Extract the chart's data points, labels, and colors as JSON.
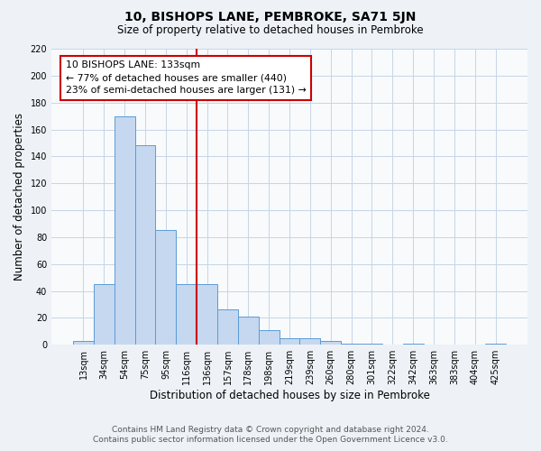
{
  "title": "10, BISHOPS LANE, PEMBROKE, SA71 5JN",
  "subtitle": "Size of property relative to detached houses in Pembroke",
  "xlabel": "Distribution of detached houses by size in Pembroke",
  "ylabel": "Number of detached properties",
  "bar_labels": [
    "13sqm",
    "34sqm",
    "54sqm",
    "75sqm",
    "95sqm",
    "116sqm",
    "136sqm",
    "157sqm",
    "178sqm",
    "198sqm",
    "219sqm",
    "239sqm",
    "260sqm",
    "280sqm",
    "301sqm",
    "322sqm",
    "342sqm",
    "363sqm",
    "383sqm",
    "404sqm",
    "425sqm"
  ],
  "bar_values": [
    3,
    45,
    170,
    148,
    85,
    45,
    45,
    26,
    21,
    11,
    5,
    5,
    3,
    1,
    1,
    0,
    1,
    0,
    0,
    0,
    1
  ],
  "bar_color": "#c5d8f0",
  "bar_edge_color": "#5b9bd5",
  "vline_x": 6,
  "vline_color": "#cc0000",
  "ylim": [
    0,
    220
  ],
  "yticks": [
    0,
    20,
    40,
    60,
    80,
    100,
    120,
    140,
    160,
    180,
    200,
    220
  ],
  "annotation_title": "10 BISHOPS LANE: 133sqm",
  "annotation_line1": "← 77% of detached houses are smaller (440)",
  "annotation_line2": "23% of semi-detached houses are larger (131) →",
  "annotation_box_color": "#cc0000",
  "footer1": "Contains HM Land Registry data © Crown copyright and database right 2024.",
  "footer2": "Contains public sector information licensed under the Open Government Licence v3.0.",
  "background_color": "#eef2f7",
  "plot_bg_color": "#f8fafc",
  "grid_color": "#c5d5e8"
}
